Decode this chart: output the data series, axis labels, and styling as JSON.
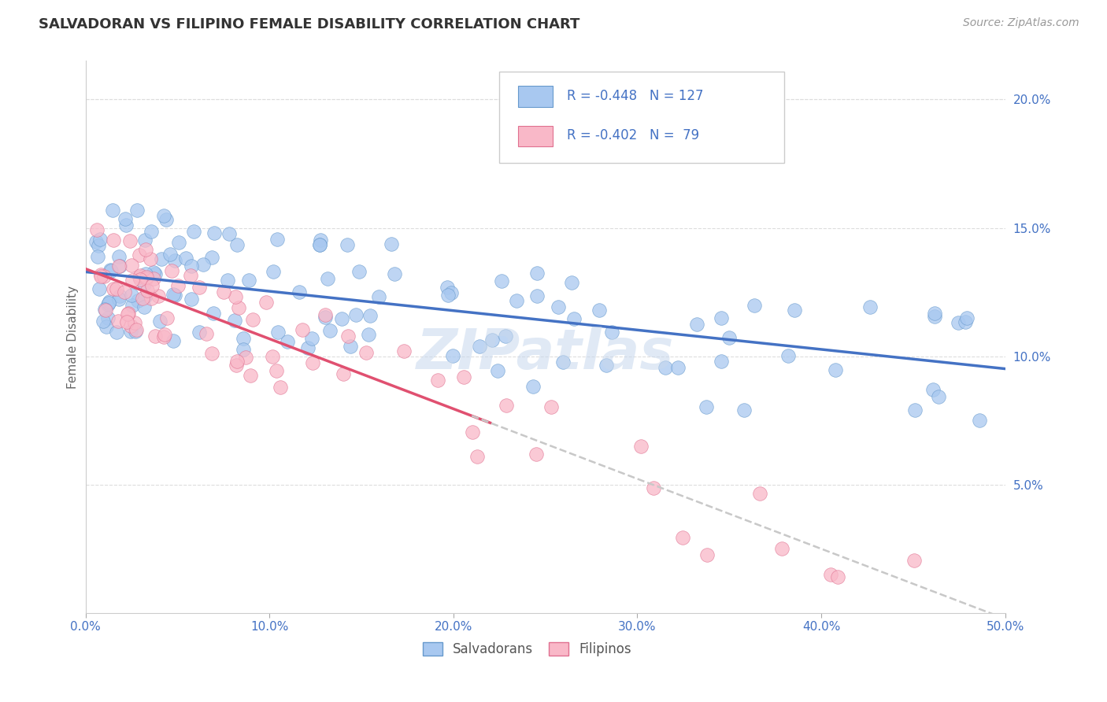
{
  "title": "SALVADORAN VS FILIPINO FEMALE DISABILITY CORRELATION CHART",
  "source": "Source: ZipAtlas.com",
  "ylabel": "Female Disability",
  "xlim": [
    0.0,
    0.5
  ],
  "ylim": [
    0.0,
    0.215
  ],
  "xticks": [
    0.0,
    0.1,
    0.2,
    0.3,
    0.4,
    0.5
  ],
  "xticklabels": [
    "0.0%",
    "10.0%",
    "20.0%",
    "30.0%",
    "40.0%",
    "50.0%"
  ],
  "yticks_right": [
    0.05,
    0.1,
    0.15,
    0.2
  ],
  "ytick_right_labels": [
    "5.0%",
    "10.0%",
    "15.0%",
    "20.0%"
  ],
  "salvadoran_color": "#a8c8f0",
  "salvadoran_edge": "#6699cc",
  "filipino_color": "#f9b8c8",
  "filipino_edge": "#e07090",
  "R_salvadoran": -0.448,
  "N_salvadoran": 127,
  "R_filipino": -0.402,
  "N_filipino": 79,
  "trend_salvadoran_color": "#4472c4",
  "trend_filipino_color": "#e05070",
  "trend_dashed_color": "#c8c8c8",
  "watermark": "ZIPatlas",
  "tick_color": "#4472c4",
  "grid_color": "#dddddd",
  "title_color": "#333333",
  "source_color": "#999999",
  "ylabel_color": "#666666"
}
